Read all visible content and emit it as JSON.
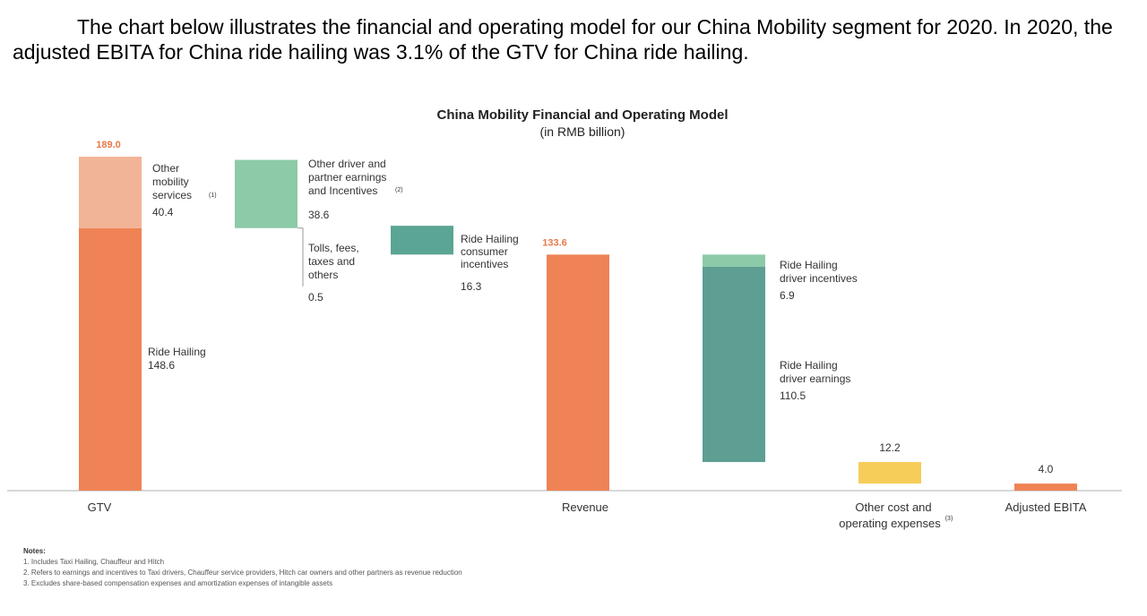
{
  "intro_text": "The chart below illustrates the financial and operating model for our China Mobility segment for 2020. In 2020, the adjusted EBITA for China ride hailing was 3.1% of the GTV for China ride hailing.",
  "chart_data": {
    "type": "waterfall",
    "title": "China Mobility Financial and Operating Model",
    "subtitle": "(in RMB billion)",
    "ylim": [
      0,
      189.0
    ],
    "categories": [
      "GTV",
      "Revenue",
      "Other cost and operating expenses",
      "Adjusted EBITA"
    ],
    "category_footnotes": {
      "Other cost and operating expenses": "(3)"
    },
    "totals": {
      "GTV": 189.0,
      "Revenue": 133.6,
      "Adjusted EBITA": 4.0
    },
    "stacks": [
      {
        "id": "gtv",
        "position": 0,
        "base": 0,
        "segments": [
          {
            "name": "Ride Hailing",
            "value": 148.6,
            "color": "#ef8355"
          },
          {
            "name": "Other mobility services",
            "footnote": "(1)",
            "value": 40.4,
            "color": "#f2b497"
          }
        ]
      },
      {
        "id": "other_driver",
        "position": 1,
        "base": 148.6,
        "segments": [
          {
            "name": "Other driver and partner earnings and Incentives",
            "footnote": "(2)",
            "value": 38.6,
            "color": "#8ccaa8"
          }
        ]
      },
      {
        "id": "tolls",
        "position": 1,
        "base": 148.6,
        "segments": [
          {
            "name": "Tolls, fees, taxes and others",
            "value": 0.5,
            "color": "#8ccaa8"
          }
        ]
      },
      {
        "id": "consumer_incentives",
        "position": 2,
        "base": 133.6,
        "segments": [
          {
            "name": "Ride Hailing consumer incentives",
            "value": 16.3,
            "color": "#5aa593"
          }
        ]
      },
      {
        "id": "revenue",
        "position": 3,
        "base": 0,
        "segments": [
          {
            "name": "Revenue",
            "value": 133.6,
            "color": "#ef8355"
          }
        ]
      },
      {
        "id": "driver",
        "position": 4,
        "base": 16.2,
        "segments": [
          {
            "name": "Ride Hailing driver earnings",
            "value": 110.5,
            "color": "#5e9f93"
          },
          {
            "name": "Ride Hailing driver incentives",
            "value": 6.9,
            "color": "#8ccaa8"
          }
        ]
      },
      {
        "id": "other_cost",
        "position": 5,
        "base": 4.0,
        "segments": [
          {
            "name": "Other cost and operating expenses",
            "value": 12.2,
            "color": "#f7cd5a"
          }
        ]
      },
      {
        "id": "ebita",
        "position": 6,
        "base": 0,
        "segments": [
          {
            "name": "Adjusted EBITA",
            "value": 4.0,
            "color": "#ef8355"
          }
        ]
      }
    ]
  },
  "notes": {
    "heading": "Notes:",
    "items": [
      "1. Includes Taxi Hailing, Chauffeur and Hitch",
      "2. Refers to earnings and incentives to Taxi drivers, Chauffeur service providers, Hitch car owners and other partners as revenue reduction",
      "3. Excludes share-based compensation expenses and amortization expenses of intangible assets"
    ]
  }
}
